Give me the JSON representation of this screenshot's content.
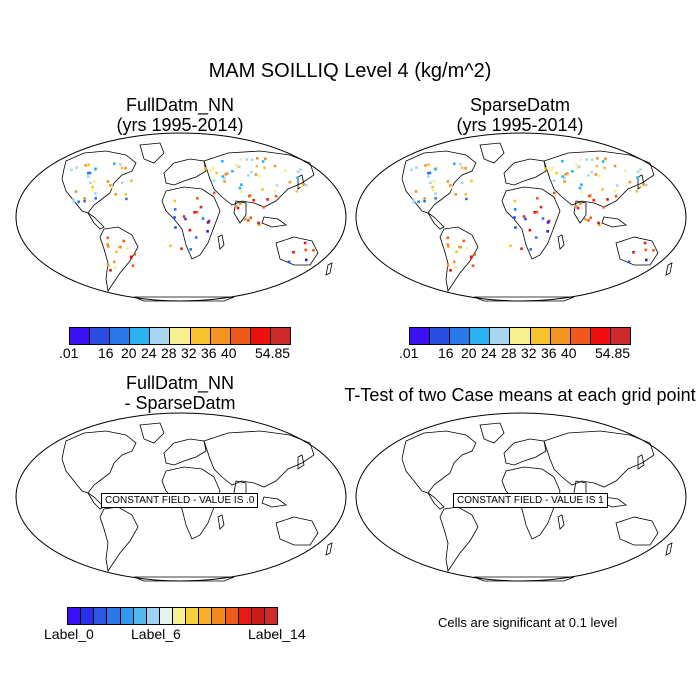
{
  "title": "MAM SOILLIQ Level 4 (kg/m^2)",
  "panels": [
    {
      "line1": "FullDatm_NN",
      "line2": "(yrs 1995-2014)"
    },
    {
      "line1": "SparseDatm",
      "line2": "(yrs 1995-2014)"
    },
    {
      "line1": "FullDatm_NN",
      "line2": "- SparseDatm"
    },
    {
      "line1": "T-Test of two Case means at each grid point",
      "line2": ""
    }
  ],
  "constant_left": "CONSTANT FIELD - VALUE IS .0",
  "constant_right": "CONSTANT FIELD - VALUE IS 1",
  "colorbar_top": {
    "colors": [
      "#3a10f5",
      "#2b4ce0",
      "#2b78e8",
      "#29b2ef",
      "#a9d6ef",
      "#f7f08e",
      "#f6c22d",
      "#f39420",
      "#ef5a1a",
      "#ee1010",
      "#cc2a2a"
    ],
    "labels": [
      ".01",
      "16",
      "20",
      "24",
      "28",
      "32",
      "36",
      "40",
      "54.85"
    ]
  },
  "colorbar_bottom": {
    "colors": [
      "#3a10f5",
      "#2b2ee8",
      "#2b58e0",
      "#2b78e8",
      "#2f98ef",
      "#58b6ef",
      "#9ed0ef",
      "#e8f2ef",
      "#f7f08e",
      "#f6d23a",
      "#f6b02a",
      "#f38a20",
      "#ef5a1a",
      "#e81a12",
      "#cc1a1a",
      "#d02a2a"
    ],
    "labels": [
      "Label_0",
      "Label_6",
      "Label_14"
    ]
  },
  "significance_note": "Cells are significant at 0.1 level"
}
